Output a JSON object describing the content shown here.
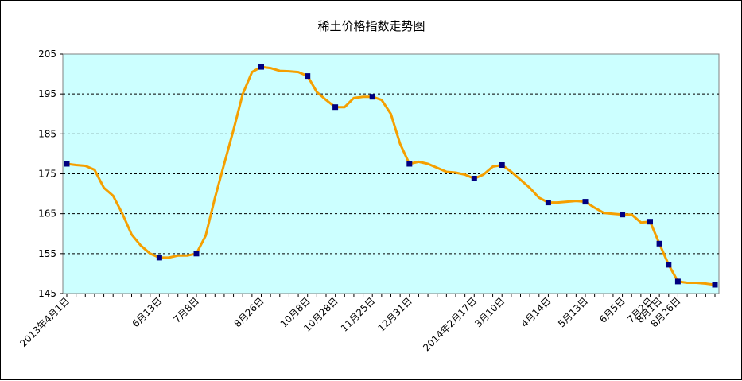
{
  "chart_data": {
    "type": "line",
    "title": "稀土价格指数走势图",
    "xlabel": "",
    "ylabel": "",
    "ylim": [
      145,
      205
    ],
    "yticks": [
      145,
      155,
      165,
      175,
      185,
      195,
      205
    ],
    "grid": "horizontal dashed",
    "background_color": "#ccffff",
    "line_color": "#f59f00",
    "marker_color": "#000080",
    "x_tick_labels": [
      "2013年4月1日",
      "6月13日",
      "7月8日",
      "8月26日",
      "10月8日",
      "10月28日",
      "11月25日",
      "12月31日",
      "2014年2月17日",
      "3月10日",
      "4月14日",
      "5月13日",
      "6月5日",
      "7月2日",
      "8月1日",
      "8月26日"
    ],
    "series": [
      {
        "values": [
          177.5,
          177.2,
          177.0,
          176.0,
          171.5,
          169.5,
          165.0,
          159.8,
          157.0,
          155.0,
          154.0,
          154.0,
          154.5,
          154.5,
          155.0,
          159.5,
          169.0,
          177.5,
          186.0,
          195.0,
          200.5,
          201.8,
          201.5,
          200.8,
          200.7,
          200.5,
          199.5,
          195.5,
          193.5,
          191.7,
          191.7,
          194.0,
          194.3,
          194.3,
          193.5,
          190.0,
          182.5,
          177.5,
          178.0,
          177.5,
          176.5,
          175.5,
          175.3,
          174.8,
          173.8,
          174.8,
          176.8,
          177.2,
          175.5,
          173.5,
          171.5,
          169.0,
          167.8,
          167.8,
          168.0,
          168.2,
          168.0,
          166.5,
          165.2,
          165.0,
          164.8,
          164.8,
          162.8,
          163.0,
          157.5,
          152.2,
          148.0,
          147.7,
          147.7,
          147.5,
          147.2
        ],
        "marker_indices": [
          0,
          10,
          14,
          21,
          26,
          29,
          33,
          37,
          44,
          47,
          52,
          56,
          60,
          63,
          64,
          65,
          66,
          70
        ]
      }
    ]
  }
}
